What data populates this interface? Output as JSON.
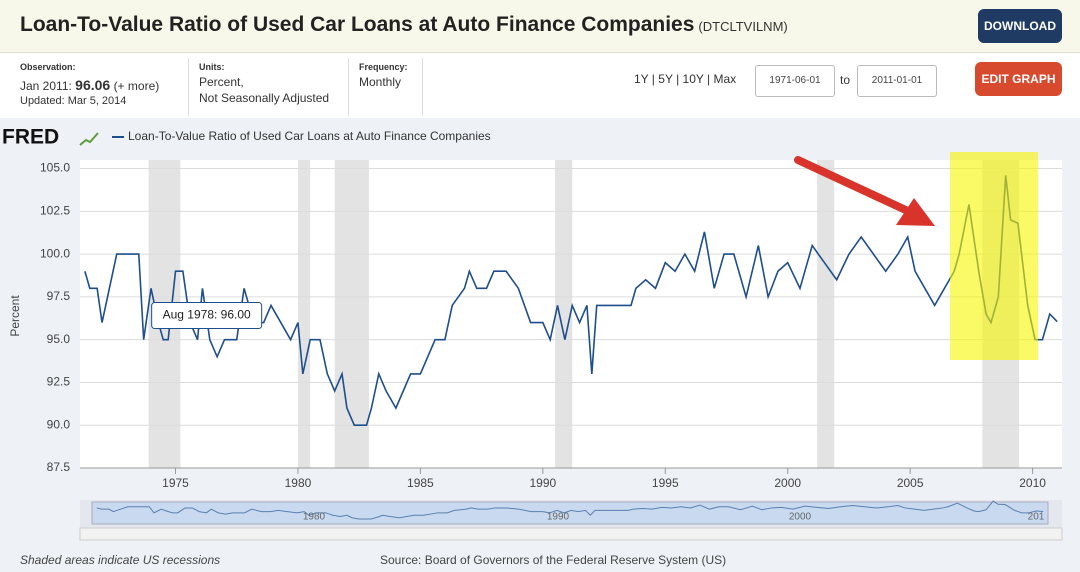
{
  "header": {
    "title": "Loan-To-Value Ratio of Used Car Loans at Auto Finance Companies",
    "code": "(DTCLTVILNM)",
    "download": "DOWNLOAD"
  },
  "meta": {
    "observation_label": "Observation:",
    "observation_date": "Jan 2011:",
    "observation_value": "96.06",
    "more": "(+ more)",
    "updated": "Updated: Mar 5, 2014",
    "units_label": "Units:",
    "units": [
      "Percent,",
      "Not Seasonally Adjusted"
    ],
    "frequency_label": "Frequency:",
    "frequency": "Monthly"
  },
  "controls": {
    "ranges": [
      "1Y",
      "5Y",
      "10Y",
      "Max"
    ],
    "from": "1971-06-01",
    "to_label": "to",
    "to": "2011-01-01",
    "edit": "EDIT GRAPH"
  },
  "chart_data": {
    "type": "line",
    "brand": "FRED",
    "ylabel": "Percent",
    "series": [
      {
        "name": "Loan-To-Value Ratio of Used Car Loans at Auto Finance Companies",
        "color": "#1f4e8c",
        "x": [
          1971.3,
          1971.5,
          1971.8,
          1972.0,
          1972.3,
          1972.6,
          1973.0,
          1973.5,
          1973.7,
          1974.0,
          1974.3,
          1974.5,
          1974.7,
          1975.0,
          1975.3,
          1975.6,
          1975.9,
          1976.1,
          1976.4,
          1976.7,
          1977.0,
          1977.5,
          1977.8,
          1978.2,
          1978.6,
          1978.9,
          1979.3,
          1979.7,
          1980.0,
          1980.2,
          1980.5,
          1980.9,
          1981.2,
          1981.5,
          1981.8,
          1982.0,
          1982.3,
          1982.8,
          1983.0,
          1983.3,
          1983.6,
          1984.0,
          1984.3,
          1984.6,
          1985.0,
          1985.3,
          1985.6,
          1986.0,
          1986.3,
          1986.8,
          1987.0,
          1987.3,
          1987.7,
          1988.0,
          1988.5,
          1989.0,
          1989.5,
          1990.0,
          1990.3,
          1990.6,
          1990.9,
          1991.2,
          1991.5,
          1991.8,
          1992.0,
          1992.2,
          1993.0,
          1993.6,
          1993.8,
          1994.2,
          1994.6,
          1995.0,
          1995.4,
          1995.8,
          1996.2,
          1996.6,
          1997.0,
          1997.4,
          1997.8,
          1998.3,
          1998.8,
          1999.2,
          1999.6,
          2000.0,
          2000.5,
          2001.0,
          2001.5,
          2002.0,
          2002.5,
          2003.0,
          2003.5,
          2004.0,
          2004.5,
          2004.9,
          2005.2,
          2005.6,
          2006.0,
          2006.4,
          2006.8,
          2007.0,
          2007.4,
          2007.8,
          2008.1,
          2008.3,
          2008.6,
          2008.9,
          2009.1,
          2009.4,
          2009.8,
          2010.1,
          2010.4,
          2010.7,
          2011.0
        ],
        "values": [
          99,
          98,
          98,
          96,
          98,
          100,
          100,
          100,
          95,
          98,
          96,
          95,
          95,
          99,
          99,
          96,
          95,
          98,
          95,
          94,
          95,
          95,
          98,
          96,
          96,
          97,
          96,
          95,
          96,
          93,
          95,
          95,
          93,
          92,
          93,
          91,
          90,
          90,
          91,
          93,
          92,
          91,
          92,
          93,
          93,
          94,
          95,
          95,
          97,
          98,
          99,
          98,
          98,
          99,
          99,
          98,
          96,
          96,
          95,
          97,
          95,
          97,
          96,
          97,
          93,
          97,
          97,
          97,
          98,
          98.5,
          98,
          99.5,
          99,
          100,
          99,
          101.3,
          98,
          100,
          100,
          97.5,
          100.5,
          97.5,
          99,
          99.5,
          98,
          100.5,
          99.5,
          98.5,
          100,
          101,
          100,
          99,
          100,
          101,
          99,
          98,
          97,
          98,
          99,
          100,
          102.9,
          99,
          96.5,
          96,
          97.5,
          104.6,
          102,
          101.8,
          97,
          95,
          95,
          96.5,
          96.06
        ]
      }
    ],
    "xlim": [
      1971.1,
      2011.2
    ],
    "xticks": [
      1975,
      1980,
      1985,
      1990,
      1995,
      2000,
      2005,
      2010
    ],
    "ylim": [
      87.5,
      105.5
    ],
    "yticks": [
      87.5,
      {
        "value": 90,
        "label": "90.0"
      },
      92.5,
      {
        "value": 95,
        "label": "95.0"
      },
      97.5,
      {
        "value": 100,
        "label": "100.0"
      },
      102.5,
      {
        "value": 105,
        "label": "105.0"
      }
    ],
    "grid": true,
    "recessions": [
      [
        1973.9,
        1975.2
      ],
      [
        1980.0,
        1980.5
      ],
      [
        1981.5,
        1982.9
      ],
      [
        1990.5,
        1991.2
      ],
      [
        2001.2,
        2001.9
      ],
      [
        2007.95,
        2009.45
      ]
    ],
    "tooltip": {
      "text": "Aug 1978: 96.00",
      "x": 1978.6,
      "y": 96
    },
    "navigator_labels": [
      "1980",
      "1990",
      "2000",
      "201"
    ],
    "footer_note": "Shaded areas indicate US recessions",
    "source": "Source: Board of Governors of the Federal Reserve System (US)"
  }
}
